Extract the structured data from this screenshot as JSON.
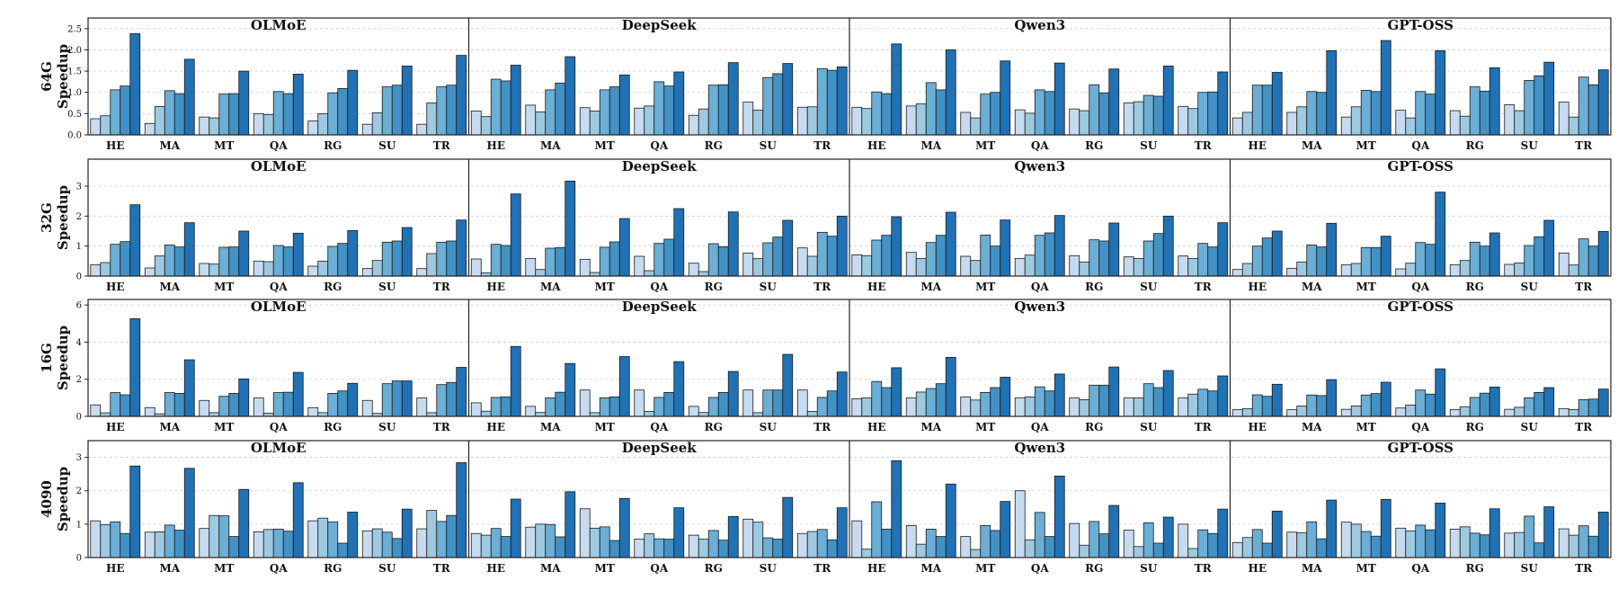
{
  "colors": [
    "#c6dbef",
    "#9ecae1",
    "#6baed6",
    "#4292c6",
    "#2171b5",
    "#08519c"
  ],
  "chart_data": {
    "type": "bar",
    "models": [
      "OLMoE",
      "DeepSeek",
      "Qwen3",
      "GPT-OSS"
    ],
    "categories": [
      "HE",
      "MA",
      "MT",
      "QA",
      "RG",
      "SU",
      "TR"
    ],
    "grid": "horizontal-dashed",
    "rows": [
      {
        "label_top": "64G",
        "label_bottom": "Speedup",
        "ylim": [
          0,
          2.75
        ],
        "yticks": [
          0.0,
          0.5,
          1.0,
          1.5,
          2.0,
          2.5
        ],
        "ytick_labels": [
          "0.0",
          "0.5",
          "1.0",
          "1.5",
          "2.0",
          "2.5"
        ],
        "panels": [
          {
            "title": "OLMoE",
            "values": [
              [
                0.38,
                0.45,
                1.06,
                1.15,
                2.38
              ],
              [
                0.27,
                0.67,
                1.04,
                0.97,
                1.78
              ],
              [
                0.42,
                0.4,
                0.96,
                0.97,
                1.5
              ],
              [
                0.5,
                0.48,
                1.02,
                0.97,
                1.43
              ],
              [
                0.33,
                0.5,
                0.99,
                1.09,
                1.52
              ],
              [
                0.25,
                0.52,
                1.13,
                1.17,
                1.62
              ],
              [
                0.25,
                0.75,
                1.13,
                1.17,
                1.87
              ]
            ]
          },
          {
            "title": "DeepSeek",
            "values": [
              [
                0.56,
                0.43,
                1.31,
                1.27,
                1.64
              ],
              [
                0.7,
                0.54,
                1.06,
                1.22,
                1.84
              ],
              [
                0.64,
                0.56,
                1.06,
                1.13,
                1.41
              ],
              [
                0.63,
                0.68,
                1.25,
                1.15,
                1.48
              ],
              [
                0.46,
                0.61,
                1.17,
                1.18,
                1.7
              ],
              [
                0.77,
                0.58,
                1.35,
                1.44,
                1.68
              ],
              [
                0.65,
                0.66,
                1.56,
                1.52,
                1.6
              ]
            ]
          },
          {
            "title": "Qwen3",
            "values": [
              [
                0.65,
                0.62,
                1.01,
                0.97,
                2.14
              ],
              [
                0.68,
                0.73,
                1.23,
                1.06,
                2.0
              ],
              [
                0.53,
                0.4,
                0.96,
                1.0,
                1.74
              ],
              [
                0.59,
                0.51,
                1.06,
                1.02,
                1.69
              ],
              [
                0.61,
                0.57,
                1.18,
                0.99,
                1.55
              ],
              [
                0.75,
                0.78,
                0.93,
                0.91,
                1.62
              ],
              [
                0.67,
                0.62,
                1.0,
                1.01,
                1.48
              ]
            ]
          },
          {
            "title": "GPT-OSS",
            "values": [
              [
                0.4,
                0.53,
                1.17,
                1.17,
                1.47
              ],
              [
                0.53,
                0.66,
                1.02,
                1.0,
                1.98
              ],
              [
                0.42,
                0.66,
                1.05,
                1.02,
                2.22
              ],
              [
                0.58,
                0.4,
                1.02,
                0.96,
                1.98
              ],
              [
                0.57,
                0.44,
                1.13,
                1.03,
                1.58
              ],
              [
                0.71,
                0.57,
                1.28,
                1.39,
                1.71
              ],
              [
                0.77,
                0.42,
                1.36,
                1.18,
                1.53
              ]
            ]
          }
        ]
      },
      {
        "label_top": "32G",
        "label_bottom": "Speedup",
        "ylim": [
          0,
          3.9
        ],
        "yticks": [
          0,
          1,
          2,
          3
        ],
        "ytick_labels": [
          "0",
          "1",
          "2",
          "3"
        ],
        "panels": [
          {
            "title": "OLMoE",
            "values": [
              [
                0.38,
                0.45,
                1.06,
                1.15,
                2.38
              ],
              [
                0.27,
                0.67,
                1.04,
                0.97,
                1.78
              ],
              [
                0.42,
                0.4,
                0.96,
                0.97,
                1.5
              ],
              [
                0.5,
                0.48,
                1.02,
                0.97,
                1.43
              ],
              [
                0.33,
                0.5,
                0.99,
                1.09,
                1.52
              ],
              [
                0.25,
                0.52,
                1.13,
                1.17,
                1.62
              ],
              [
                0.25,
                0.75,
                1.13,
                1.17,
                1.87
              ]
            ]
          },
          {
            "title": "DeepSeek",
            "values": [
              [
                0.57,
                0.11,
                1.06,
                1.02,
                2.74
              ],
              [
                0.59,
                0.22,
                0.93,
                0.95,
                3.17
              ],
              [
                0.56,
                0.12,
                0.96,
                1.14,
                1.92
              ],
              [
                0.66,
                0.18,
                1.09,
                1.23,
                2.25
              ],
              [
                0.43,
                0.15,
                1.08,
                0.98,
                2.14
              ],
              [
                0.77,
                0.58,
                1.11,
                1.3,
                1.86
              ],
              [
                0.94,
                0.66,
                1.46,
                1.33,
                2.0
              ]
            ]
          },
          {
            "title": "Qwen3",
            "values": [
              [
                0.71,
                0.68,
                1.2,
                1.36,
                1.98
              ],
              [
                0.79,
                0.59,
                1.12,
                1.36,
                2.13
              ],
              [
                0.66,
                0.52,
                1.37,
                1.0,
                1.87
              ],
              [
                0.59,
                0.7,
                1.36,
                1.44,
                2.02
              ],
              [
                0.68,
                0.47,
                1.21,
                1.17,
                1.77
              ],
              [
                0.64,
                0.59,
                1.17,
                1.42,
                2.0
              ],
              [
                0.67,
                0.59,
                1.09,
                0.97,
                1.78
              ]
            ]
          },
          {
            "title": "GPT-OSS",
            "values": [
              [
                0.22,
                0.42,
                1.0,
                1.27,
                1.5
              ],
              [
                0.26,
                0.47,
                1.04,
                0.97,
                1.76
              ],
              [
                0.38,
                0.42,
                0.95,
                0.95,
                1.33
              ],
              [
                0.24,
                0.43,
                1.12,
                1.06,
                2.8
              ],
              [
                0.38,
                0.52,
                1.13,
                1.0,
                1.44
              ],
              [
                0.39,
                0.44,
                1.02,
                1.31,
                1.86
              ],
              [
                0.77,
                0.37,
                1.24,
                1.0,
                1.49
              ]
            ]
          }
        ]
      },
      {
        "label_top": "16G",
        "label_bottom": "Speedup",
        "ylim": [
          0,
          6.3
        ],
        "yticks": [
          0,
          2,
          4,
          6
        ],
        "ytick_labels": [
          "0",
          "2",
          "4",
          "6"
        ],
        "panels": [
          {
            "title": "OLMoE",
            "values": [
              [
                0.62,
                0.19,
                1.28,
                1.16,
                5.26
              ],
              [
                0.47,
                0.14,
                1.28,
                1.24,
                3.05
              ],
              [
                0.86,
                0.2,
                1.08,
                1.24,
                2.02
              ],
              [
                0.99,
                0.17,
                1.28,
                1.3,
                2.37
              ],
              [
                0.47,
                0.2,
                1.24,
                1.37,
                1.78
              ],
              [
                0.86,
                0.16,
                1.76,
                1.91,
                1.91
              ],
              [
                0.99,
                0.2,
                1.71,
                1.83,
                2.64
              ]
            ]
          },
          {
            "title": "DeepSeek",
            "values": [
              [
                0.73,
                0.28,
                1.02,
                1.05,
                3.77
              ],
              [
                0.54,
                0.21,
                1.0,
                1.3,
                2.85
              ],
              [
                1.42,
                0.2,
                1.0,
                1.05,
                3.22
              ],
              [
                1.42,
                0.27,
                1.02,
                1.29,
                2.95
              ],
              [
                0.54,
                0.21,
                1.02,
                1.29,
                2.42
              ],
              [
                1.42,
                0.2,
                1.42,
                1.42,
                3.34
              ],
              [
                1.42,
                0.27,
                1.02,
                1.37,
                2.39
              ]
            ]
          },
          {
            "title": "Qwen3",
            "values": [
              [
                0.95,
                1.0,
                1.88,
                1.55,
                2.62
              ],
              [
                0.99,
                1.31,
                1.5,
                1.76,
                3.18
              ],
              [
                1.05,
                0.88,
                1.29,
                1.55,
                2.11
              ],
              [
                0.99,
                1.05,
                1.59,
                1.37,
                2.28
              ],
              [
                0.99,
                0.9,
                1.68,
                1.68,
                2.66
              ],
              [
                0.99,
                0.99,
                1.76,
                1.55,
                2.47
              ],
              [
                0.99,
                1.2,
                1.46,
                1.37,
                2.18
              ]
            ]
          },
          {
            "title": "GPT-OSS",
            "values": [
              [
                0.36,
                0.42,
                1.16,
                1.08,
                1.73
              ],
              [
                0.36,
                0.56,
                1.15,
                1.12,
                1.98
              ],
              [
                0.38,
                0.56,
                1.15,
                1.23,
                1.84
              ],
              [
                0.45,
                0.61,
                1.42,
                1.2,
                2.56
              ],
              [
                0.36,
                0.52,
                1.02,
                1.25,
                1.58
              ],
              [
                0.38,
                0.49,
                1.0,
                1.29,
                1.55
              ],
              [
                0.42,
                0.37,
                0.9,
                0.93,
                1.47
              ]
            ]
          }
        ]
      },
      {
        "label_top": "4090",
        "label_bottom": "Speedup",
        "ylim": [
          0,
          3.5
        ],
        "yticks": [
          0,
          1,
          2,
          3
        ],
        "ytick_labels": [
          "0",
          "1",
          "2",
          "3"
        ],
        "panels": [
          {
            "title": "OLMoE",
            "values": [
              [
                1.1,
                0.98,
                1.07,
                0.72,
                2.74
              ],
              [
                0.76,
                0.77,
                0.97,
                0.82,
                2.67
              ],
              [
                0.87,
                1.26,
                1.25,
                0.63,
                2.04
              ],
              [
                0.77,
                0.84,
                0.85,
                0.79,
                2.24
              ],
              [
                1.1,
                1.18,
                1.07,
                0.43,
                1.36
              ],
              [
                0.8,
                0.86,
                0.76,
                0.57,
                1.45
              ],
              [
                0.86,
                1.41,
                1.08,
                1.26,
                2.84
              ]
            ]
          },
          {
            "title": "DeepSeek",
            "values": [
              [
                0.72,
                0.67,
                0.87,
                0.63,
                1.75
              ],
              [
                0.91,
                1.0,
                0.99,
                0.62,
                1.97
              ],
              [
                1.46,
                0.88,
                0.92,
                0.51,
                1.77
              ],
              [
                0.55,
                0.71,
                0.56,
                0.55,
                1.49
              ],
              [
                0.67,
                0.55,
                0.81,
                0.52,
                1.23
              ],
              [
                1.15,
                1.06,
                0.59,
                0.55,
                1.8
              ],
              [
                0.72,
                0.78,
                0.84,
                0.53,
                1.49
              ]
            ]
          },
          {
            "title": "Qwen3",
            "values": [
              [
                1.1,
                0.25,
                1.67,
                0.85,
                2.9
              ],
              [
                0.96,
                0.4,
                0.85,
                0.63,
                2.2
              ],
              [
                0.63,
                0.24,
                0.96,
                0.81,
                1.68
              ],
              [
                2.0,
                0.53,
                1.35,
                0.63,
                2.44
              ],
              [
                1.02,
                0.37,
                1.08,
                0.71,
                1.56
              ],
              [
                0.82,
                0.33,
                1.04,
                0.43,
                1.21
              ],
              [
                1.0,
                0.27,
                0.83,
                0.72,
                1.45
              ]
            ]
          },
          {
            "title": "GPT-OSS",
            "values": [
              [
                0.45,
                0.6,
                0.84,
                0.43,
                1.39
              ],
              [
                0.76,
                0.74,
                1.07,
                0.56,
                1.72
              ],
              [
                1.06,
                1.0,
                0.78,
                0.64,
                1.74
              ],
              [
                0.88,
                0.8,
                0.97,
                0.83,
                1.63
              ],
              [
                0.85,
                0.92,
                0.73,
                0.68,
                1.46
              ],
              [
                0.73,
                0.75,
                1.24,
                0.44,
                1.52
              ],
              [
                0.86,
                0.67,
                0.95,
                0.64,
                1.36
              ]
            ]
          }
        ]
      }
    ]
  }
}
